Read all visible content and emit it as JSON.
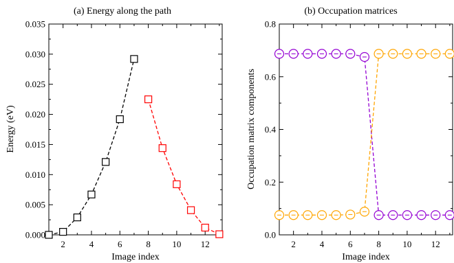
{
  "chart_data": [
    {
      "type": "scatter",
      "title": "(a) Energy along the path",
      "xlabel": "Image index",
      "ylabel": "Energy (eV)",
      "xlim": [
        1,
        13.2
      ],
      "ylim": [
        0,
        0.035
      ],
      "xticks": [
        "2",
        "4",
        "6",
        "8",
        "10",
        "12"
      ],
      "yticks": [
        "0.000",
        "0.005",
        "0.010",
        "0.015",
        "0.020",
        "0.025",
        "0.030",
        "0.035"
      ],
      "marker": "square",
      "grid": false,
      "series": [
        {
          "color": "#000000",
          "x": [
            1,
            2,
            3,
            4,
            5,
            6,
            7
          ],
          "y": [
            0.0,
            0.0005,
            0.0029,
            0.0067,
            0.0121,
            0.0192,
            0.0292
          ]
        },
        {
          "color": "#ff0000",
          "x": [
            8,
            9,
            10,
            11,
            12,
            13
          ],
          "y": [
            0.0225,
            0.0144,
            0.0084,
            0.0041,
            0.0012,
            0.0001
          ]
        }
      ]
    },
    {
      "type": "scatter",
      "title": "(b) Occupation matrices",
      "xlabel": "Image index",
      "ylabel": "Occupation matrix components",
      "xlim": [
        1,
        13.2
      ],
      "ylim": [
        0,
        0.8
      ],
      "xticks": [
        "2",
        "4",
        "6",
        "8",
        "10",
        "12"
      ],
      "yticks": [
        "0.0",
        "0.2",
        "0.4",
        "0.6",
        "0.8"
      ],
      "marker": "circle",
      "grid": false,
      "series": [
        {
          "color": "#9400d3",
          "x": [
            1,
            2,
            3,
            4,
            5,
            6,
            7,
            8,
            9,
            10,
            11,
            12,
            13
          ],
          "y": [
            0.687,
            0.687,
            0.687,
            0.687,
            0.687,
            0.687,
            0.675,
            0.075,
            0.075,
            0.075,
            0.075,
            0.075,
            0.075
          ]
        },
        {
          "color": "#ffa500",
          "x": [
            1,
            2,
            3,
            4,
            5,
            6,
            7,
            8,
            9,
            10,
            11,
            12,
            13
          ],
          "y": [
            0.075,
            0.075,
            0.075,
            0.075,
            0.075,
            0.077,
            0.088,
            0.687,
            0.687,
            0.687,
            0.687,
            0.687,
            0.687
          ]
        }
      ]
    }
  ]
}
